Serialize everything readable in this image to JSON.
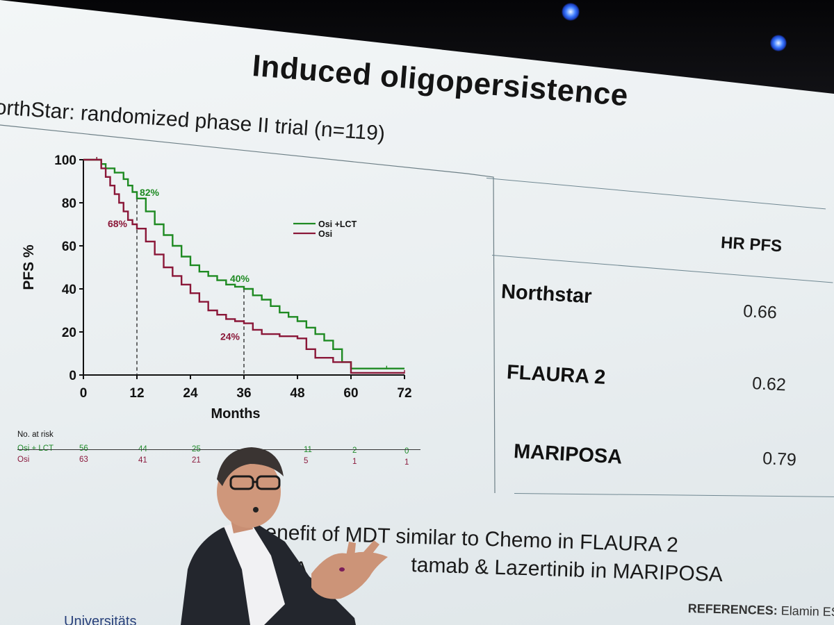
{
  "slide": {
    "title": "Induced oligopersistence",
    "subtitle": "orthStar: randomized phase II trial (n=119)"
  },
  "chart_data": {
    "type": "line",
    "title": "",
    "xlabel": "Months",
    "ylabel": "PFS %",
    "xlim": [
      0,
      72
    ],
    "ylim": [
      0,
      100
    ],
    "x_ticks": [
      "0",
      "12",
      "24",
      "36",
      "48",
      "60",
      "72"
    ],
    "y_ticks": [
      "0",
      "20",
      "40",
      "60",
      "80",
      "100"
    ],
    "legend_position": "right-middle",
    "series": [
      {
        "name": "Osi +LCT",
        "color": "#1e8a22",
        "x": [
          0,
          3,
          4,
          5,
          7,
          9,
          10,
          11,
          12,
          14,
          16,
          18,
          20,
          22,
          24,
          26,
          28,
          30,
          32,
          34,
          36,
          38,
          40,
          42,
          44,
          46,
          48,
          50,
          52,
          54,
          56,
          58,
          60,
          64,
          68,
          72
        ],
        "y": [
          100,
          100,
          98,
          96,
          94,
          91,
          88,
          85,
          82,
          76,
          70,
          65,
          60,
          55,
          51,
          48,
          46,
          44,
          42,
          41,
          40,
          37,
          35,
          32,
          29,
          27,
          25,
          22,
          19,
          16,
          12,
          6,
          3,
          3,
          3,
          3
        ]
      },
      {
        "name": "Osi",
        "color": "#8a1738",
        "x": [
          0,
          3,
          4,
          5,
          6,
          7,
          8,
          9,
          10,
          11,
          12,
          14,
          16,
          18,
          20,
          22,
          24,
          26,
          28,
          30,
          32,
          34,
          36,
          38,
          40,
          44,
          48,
          50,
          52,
          56,
          60,
          72
        ],
        "y": [
          100,
          100,
          96,
          92,
          88,
          84,
          80,
          76,
          72,
          70,
          68,
          62,
          56,
          50,
          46,
          42,
          38,
          34,
          30,
          28,
          26,
          25,
          24,
          21,
          19,
          18,
          17,
          12,
          8,
          6,
          1,
          1
        ]
      }
    ],
    "annotations": [
      {
        "text": "82%",
        "x": 12,
        "y": 82,
        "series": "Osi +LCT"
      },
      {
        "text": "68%",
        "x": 12,
        "y": 68,
        "series": "Osi"
      },
      {
        "text": "40%",
        "x": 36,
        "y": 40,
        "series": "Osi +LCT"
      },
      {
        "text": "24%",
        "x": 36,
        "y": 24,
        "series": "Osi"
      }
    ],
    "reference_lines_x": [
      12,
      36
    ],
    "risk_table": {
      "title": "No. at risk",
      "rows": [
        {
          "label": "Osi + LCT",
          "values": [
            "56",
            "44",
            "25",
            "",
            "11",
            "2",
            "0"
          ]
        },
        {
          "label": "Osi",
          "values": [
            "63",
            "41",
            "21",
            "",
            "5",
            "1",
            "1"
          ]
        }
      ]
    }
  },
  "table": {
    "header": "HR PFS",
    "rows": [
      {
        "trial": "Northstar",
        "hr": "0.66"
      },
      {
        "trial": "FLAURA 2",
        "hr": "0.62"
      },
      {
        "trial": "MARIPOSA",
        "hr": "0.79"
      }
    ]
  },
  "bottom": {
    "line1": "enefit of MDT similar to Chemo in FLAURA 2",
    "line2": "d A",
    "line2b": "tamab & Lazertinib in  MARIPOSA"
  },
  "references": {
    "label": "REFERENCES:",
    "text": "Elamin ESM"
  },
  "footer_logo": "Universitäts"
}
